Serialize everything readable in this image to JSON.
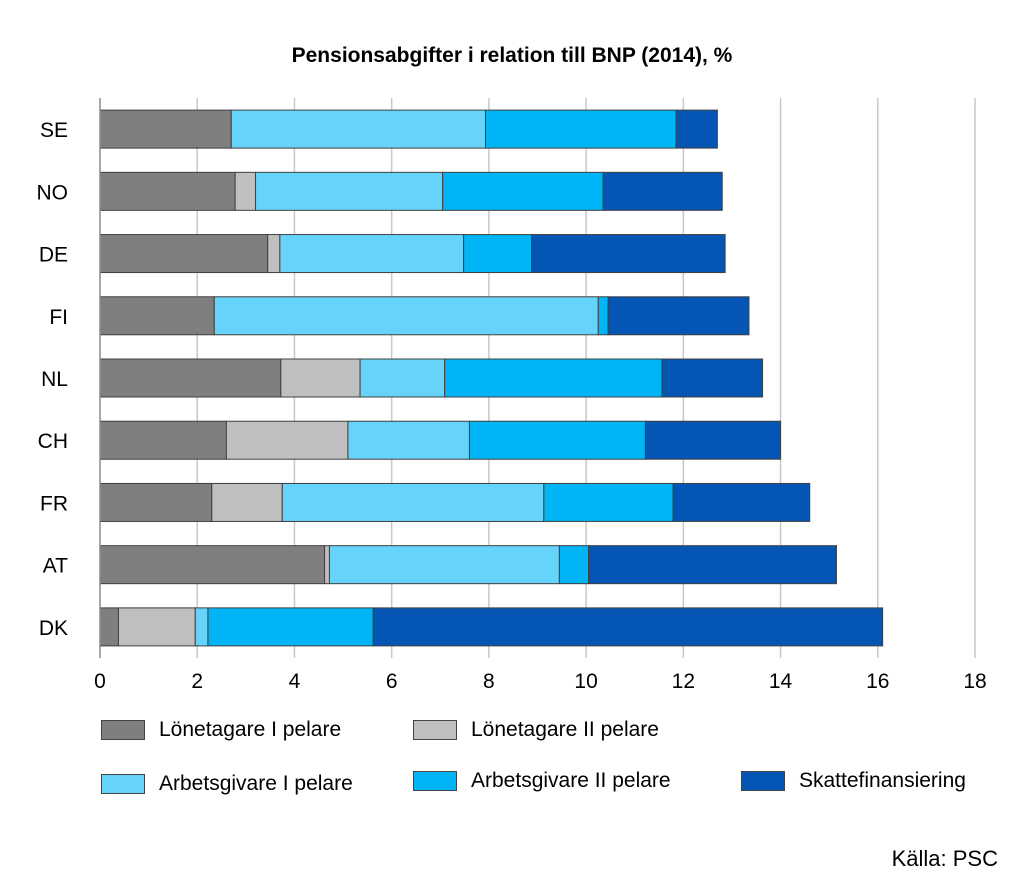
{
  "chart_data": {
    "type": "bar",
    "orientation": "horizontal",
    "stacked": true,
    "title": "Pensionsabgifter i relation till BNP (2014), %",
    "categories": [
      "SE",
      "NO",
      "DE",
      "FI",
      "NL",
      "CH",
      "FR",
      "AT",
      "DK"
    ],
    "xlim": [
      0,
      18
    ],
    "xticks": [
      "0",
      "2",
      "4",
      "6",
      "8",
      "10",
      "12",
      "14",
      "16",
      "18"
    ],
    "grid": "vertical",
    "legend_position": "bottom",
    "series": [
      {
        "name": "Lönetagare I pelare",
        "color": "#7f7f7f",
        "values": [
          2.7,
          2.78,
          3.45,
          2.35,
          3.72,
          2.6,
          2.3,
          4.62,
          0.38
        ]
      },
      {
        "name": "Lönetagare II pelare",
        "color": "#bfbfbf",
        "values": [
          0.0,
          0.42,
          0.25,
          0.0,
          1.63,
          2.5,
          1.45,
          0.1,
          1.58
        ]
      },
      {
        "name": "Arbetsgivare I pelare",
        "color": "#66d4fa",
        "values": [
          5.23,
          3.85,
          3.78,
          7.9,
          1.74,
          2.5,
          5.38,
          4.73,
          0.26
        ]
      },
      {
        "name": "Arbetsgivare II pelare",
        "color": "#00b4f5",
        "values": [
          3.92,
          3.3,
          1.4,
          0.2,
          4.47,
          3.62,
          2.66,
          0.6,
          3.4
        ]
      },
      {
        "name": "Skattefinansiering",
        "color": "#0555b5",
        "values": [
          0.85,
          2.45,
          3.98,
          2.9,
          2.07,
          2.78,
          2.81,
          5.1,
          10.48
        ]
      }
    ],
    "source": "Källa: PSC"
  }
}
